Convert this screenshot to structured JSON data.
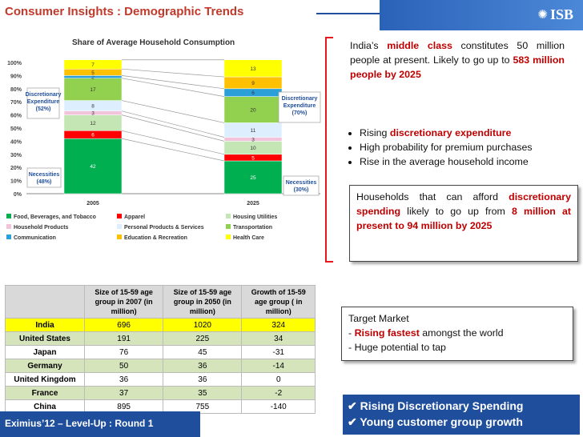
{
  "header": {
    "title": "Consumer Insights : Demographic Trends",
    "logo": "ISB",
    "logo_icon": "isb-logo-icon"
  },
  "chart_data": {
    "type": "stacked-bar",
    "title": "Share of Average Household Consumption",
    "categories": [
      "2005",
      "2025"
    ],
    "y_ticks": [
      "100%",
      "90%",
      "80%",
      "70%",
      "60%",
      "50%",
      "40%",
      "30%",
      "20%",
      "10%",
      "0%"
    ],
    "ylim": [
      0,
      100
    ],
    "series": [
      {
        "name": "Food, Beverages, and Tobacco",
        "color": "#00b050",
        "values": [
          42,
          25
        ]
      },
      {
        "name": "Apparel",
        "color": "#ff0000",
        "values": [
          6,
          5
        ]
      },
      {
        "name": "Housing Utilities",
        "color": "#c3e6b4",
        "values": [
          12,
          10
        ]
      },
      {
        "name": "Household Products",
        "color": "#f2c4dc",
        "values": [
          3,
          3
        ]
      },
      {
        "name": "Personal Products & Services",
        "color": "#ddeeff",
        "values": [
          8,
          11
        ]
      },
      {
        "name": "Transportation",
        "color": "#92d050",
        "values": [
          17,
          20
        ]
      },
      {
        "name": "Communication",
        "color": "#2a9fd8",
        "values": [
          2,
          6
        ]
      },
      {
        "name": "Education & Recreation",
        "color": "#ffc000",
        "values": [
          5,
          9
        ]
      },
      {
        "name": "Health Care",
        "color": "#ffff00",
        "values": [
          7,
          13
        ]
      }
    ],
    "labels_2005": [
      "42",
      "6",
      "12",
      "3",
      "8",
      "17",
      "2",
      "5",
      "7"
    ],
    "labels_2025": [
      "25",
      "5",
      "10",
      "3",
      "11",
      "20",
      "6",
      "9",
      "13"
    ],
    "annotations": {
      "disc_2005": {
        "line1": "Discretionary",
        "line2": "Expenditure",
        "line3": "(52%)"
      },
      "disc_2025": {
        "line1": "Discretionary",
        "line2": "Expenditure",
        "line3": "(70%)"
      },
      "nec_2005": {
        "line1": "Necessities",
        "line2": "(48%)"
      },
      "nec_2025": {
        "line1": "Necessities",
        "line2": "(30%)"
      }
    }
  },
  "legend": [
    [
      "Food, Beverages, and Tobacco",
      "Apparel",
      "Housing Utilities"
    ],
    [
      "Household Products",
      "Personal Products & Services",
      "Transportation"
    ],
    [
      "Communication",
      "Education & Recreation",
      "Health Care"
    ]
  ],
  "info1": {
    "t1": "India’s ",
    "hl1": "middle class",
    "t2": " constitutes 50 million people at present. Likely to go up to ",
    "hl2": "583 million people by 2025"
  },
  "bullets": {
    "b1_pre": "Rising ",
    "b1_hl": "discretionary expenditure",
    "b2": "High probability for premium purchases",
    "b3": "Rise in the average household income"
  },
  "info2": {
    "t1": "Households that can afford ",
    "hl1": "discretionary spending",
    "t2": " likely to go up from ",
    "hl2": "8 million at present to 94 million by 2025"
  },
  "target": {
    "title": "Target Market",
    "item1_hl": "Rising fastest",
    "item1_rest": " amongst the world",
    "item2": "Huge potential to tap"
  },
  "table": {
    "headers": [
      "",
      "Size of 15-59 age group in 2007 (in million)",
      "Size of 15-59 age group in 2050 (in million)",
      "Growth of 15-59 age group ( in million)"
    ],
    "rows": [
      [
        "India",
        "696",
        "1020",
        "324"
      ],
      [
        "United States",
        "191",
        "225",
        "34"
      ],
      [
        "Japan",
        "76",
        "45",
        "-31"
      ],
      [
        "Germany",
        "50",
        "36",
        "-14"
      ],
      [
        "United Kingdom",
        "36",
        "36",
        "0"
      ],
      [
        "France",
        "37",
        "35",
        "-2"
      ],
      [
        "China",
        "895",
        "755",
        "-140"
      ]
    ]
  },
  "footer": {
    "text": "Eximius’12 – Level-Up : Round 1"
  },
  "conclusion": {
    "l1": "Rising Discretionary Spending",
    "l2": "Young customer group growth"
  },
  "colors": {
    "accent_red": "#c00000",
    "brand_blue": "#1f4e9c"
  }
}
